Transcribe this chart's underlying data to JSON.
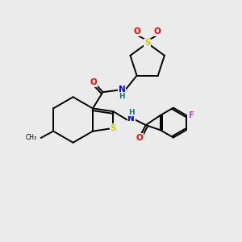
{
  "background_color": "#ebebeb",
  "figsize": [
    3.0,
    3.0
  ],
  "dpi": 100,
  "atom_colors": {
    "S": "#cccc00",
    "O": "#ff0000",
    "N": "#0000ff",
    "H": "#008080",
    "F": "#cc44cc",
    "C": "#000000"
  }
}
